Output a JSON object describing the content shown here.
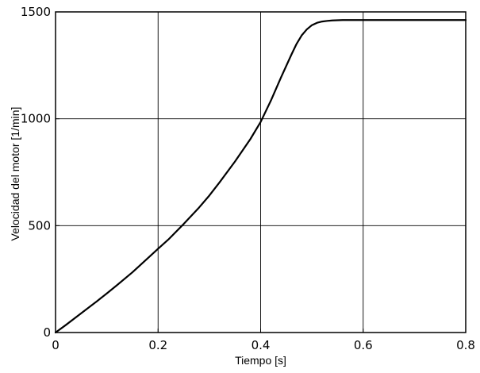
{
  "chart_data": {
    "type": "line",
    "title": "",
    "xlabel": "Tiempo [s]",
    "ylabel": "Velocidad del motor [1/min]",
    "xlim": [
      0,
      0.8
    ],
    "ylim": [
      0,
      1500
    ],
    "x_ticks": [
      0,
      0.2,
      0.4,
      0.6,
      0.8
    ],
    "x_tick_labels": [
      "0",
      "0.2",
      "0.4",
      "0.6",
      "0.8"
    ],
    "y_ticks": [
      0,
      500,
      1000,
      1500
    ],
    "y_tick_labels": [
      "0",
      "500",
      "1000",
      "1500"
    ],
    "grid": true,
    "legend": "none",
    "line_color": "#000000",
    "series": [
      {
        "x": [
          0,
          0.02,
          0.05,
          0.08,
          0.1,
          0.12,
          0.15,
          0.18,
          0.2,
          0.22,
          0.25,
          0.28,
          0.3,
          0.32,
          0.35,
          0.38,
          0.4,
          0.42,
          0.44,
          0.46,
          0.47,
          0.48,
          0.49,
          0.5,
          0.51,
          0.52,
          0.53,
          0.54,
          0.55,
          0.56,
          0.6,
          0.7,
          0.8
        ],
        "y": [
          0,
          35,
          90,
          145,
          183,
          222,
          282,
          348,
          392,
          435,
          508,
          585,
          641,
          703,
          800,
          905,
          985,
          1085,
          1195,
          1300,
          1350,
          1390,
          1418,
          1438,
          1449,
          1455,
          1458,
          1460,
          1461,
          1462,
          1462,
          1462,
          1462
        ]
      }
    ]
  }
}
